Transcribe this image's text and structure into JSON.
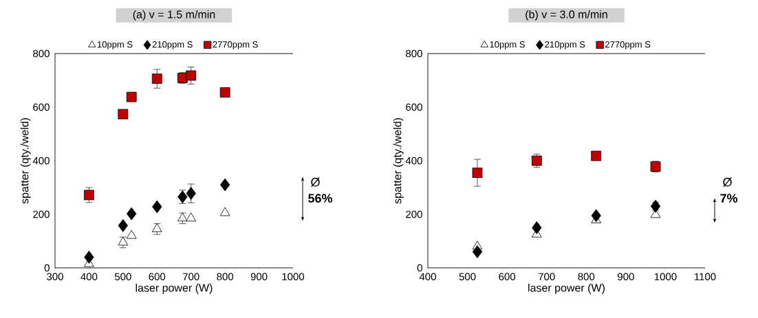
{
  "chart_data": [
    {
      "type": "scatter",
      "title": "(a) v = 1.5 m/min",
      "xlabel": "laser power (W)",
      "ylabel": "spatter (qty./weld)",
      "xlim": [
        300,
        1000
      ],
      "xticks": [
        300,
        400,
        500,
        600,
        700,
        800,
        900,
        1000
      ],
      "ylim": [
        0,
        800
      ],
      "yticks": [
        0,
        200,
        400,
        600,
        800
      ],
      "legend": "top",
      "x": [
        400,
        500,
        525,
        600,
        675,
        700,
        800
      ],
      "series": [
        {
          "name": "10ppm S",
          "color": "#ffffff",
          "marker": "triangle",
          "values": [
            15,
            95,
            120,
            145,
            185,
            185,
            205
          ],
          "errors": [
            null,
            20,
            null,
            20,
            20,
            null,
            null
          ]
        },
        {
          "name": "210ppm S",
          "color": "#000000",
          "marker": "diamond",
          "values": [
            40,
            158,
            202,
            228,
            265,
            278,
            310
          ],
          "errors": [
            null,
            null,
            null,
            null,
            25,
            35,
            null
          ]
        },
        {
          "name": "2770ppm S",
          "color": "#c00000",
          "marker": "square",
          "values": [
            272,
            574,
            638,
            706,
            709,
            718,
            655
          ],
          "errors": [
            28,
            null,
            null,
            35,
            20,
            32,
            15
          ]
        }
      ],
      "annotations": [
        "Ø",
        "56%"
      ]
    },
    {
      "type": "scatter",
      "title": "(b) v = 3.0 m/min",
      "xlabel": "laser power (W)",
      "ylabel": "spatter (qty./weld)",
      "xlim": [
        400,
        1100
      ],
      "xticks": [
        400,
        500,
        600,
        700,
        800,
        900,
        1000,
        1100
      ],
      "ylim": [
        0,
        800
      ],
      "yticks": [
        0,
        200,
        400,
        600,
        800
      ],
      "legend": "top",
      "x": [
        525,
        675,
        825,
        975
      ],
      "series": [
        {
          "name": "10ppm S",
          "color": "#ffffff",
          "marker": "triangle",
          "values": [
            80,
            125,
            178,
            198
          ]
        },
        {
          "name": "210ppm S",
          "color": "#000000",
          "marker": "diamond",
          "values": [
            60,
            150,
            195,
            230
          ],
          "errors": [
            null,
            null,
            null,
            15
          ]
        },
        {
          "name": "2770ppm S",
          "color": "#c00000",
          "marker": "square",
          "values": [
            355,
            400,
            418,
            378
          ],
          "errors": [
            50,
            25,
            null,
            20
          ]
        }
      ],
      "annotations": [
        "Ø",
        "7%"
      ]
    }
  ]
}
